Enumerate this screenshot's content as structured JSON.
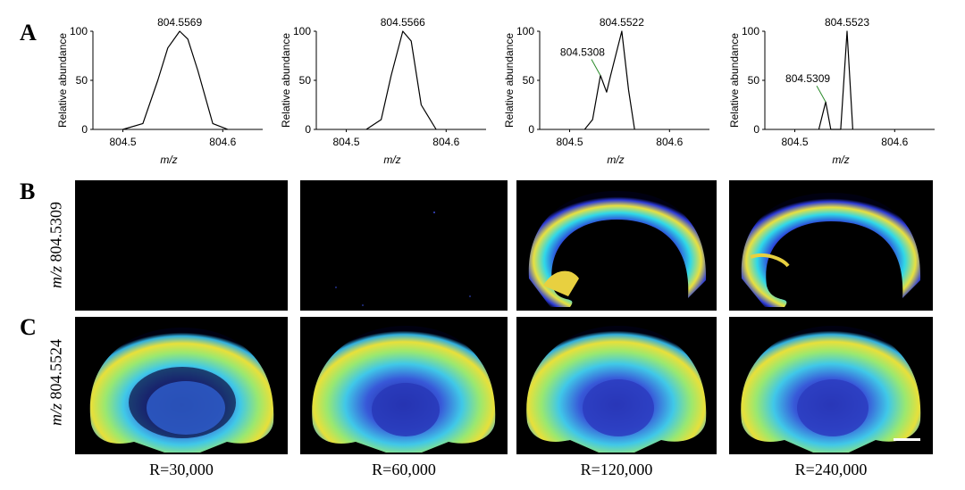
{
  "panels": {
    "a": "A",
    "b": "B",
    "c": "C"
  },
  "spectra_axis": {
    "ylabel": "Relative abundance",
    "xlabel": "m/z",
    "yticks": [
      "0",
      "50",
      "100"
    ],
    "xticks": [
      "804.5",
      "804.6"
    ]
  },
  "chart_data": [
    {
      "type": "line",
      "resolution": "R=30,000",
      "xlim": [
        804.47,
        804.64
      ],
      "ylim": [
        0,
        100
      ],
      "series": [
        {
          "x": [
            804.5,
            804.52,
            804.535,
            804.545,
            804.5569,
            804.565,
            804.575,
            804.59,
            804.605
          ],
          "y": [
            0,
            6,
            50,
            83,
            100,
            92,
            60,
            6,
            0
          ]
        }
      ],
      "annotations": [
        {
          "label": "804.5569",
          "x": 804.5569,
          "y": 100
        }
      ]
    },
    {
      "type": "line",
      "resolution": "R=60,000",
      "xlim": [
        804.47,
        804.64
      ],
      "ylim": [
        0,
        100
      ],
      "series": [
        {
          "x": [
            804.52,
            804.535,
            804.545,
            804.5566,
            804.565,
            804.575,
            804.59
          ],
          "y": [
            0,
            10,
            55,
            100,
            90,
            25,
            0
          ]
        }
      ],
      "annotations": [
        {
          "label": "804.5566",
          "x": 804.5566,
          "y": 100
        }
      ]
    },
    {
      "type": "line",
      "resolution": "R=120,000",
      "xlim": [
        804.47,
        804.64
      ],
      "ylim": [
        0,
        100
      ],
      "series": [
        {
          "x": [
            804.515,
            804.523,
            804.5308,
            804.537,
            804.541,
            804.5522,
            804.559,
            804.565
          ],
          "y": [
            0,
            10,
            55,
            38,
            55,
            100,
            40,
            0
          ]
        }
      ],
      "annotations": [
        {
          "label": "804.5308",
          "x": 804.5308,
          "y": 55
        },
        {
          "label": "804.5522",
          "x": 804.5522,
          "y": 100
        }
      ]
    },
    {
      "type": "line",
      "resolution": "R=240,000",
      "xlim": [
        804.47,
        804.64
      ],
      "ylim": [
        0,
        100
      ],
      "series": [
        {
          "x": [
            804.524,
            804.5309,
            804.536,
            804.546,
            804.5523,
            804.558
          ],
          "y": [
            0,
            28,
            0,
            0,
            100,
            0
          ]
        }
      ],
      "annotations": [
        {
          "label": "804.5309",
          "x": 804.5309,
          "y": 28
        },
        {
          "label": "804.5523",
          "x": 804.5523,
          "y": 100
        }
      ]
    }
  ],
  "rows": {
    "b": {
      "prefix": "m/z",
      "value": "804.5309"
    },
    "c": {
      "prefix": "m/z",
      "value": "804.5524"
    }
  },
  "resolutions": [
    "R=30,000",
    "R=60,000",
    "R=120,000",
    "R=240,000"
  ],
  "colors": {
    "background": "#000000",
    "low": "#1a1a8c",
    "mid": "#2ad0e0",
    "high": "#e8e03a",
    "peak": "#e03020"
  }
}
